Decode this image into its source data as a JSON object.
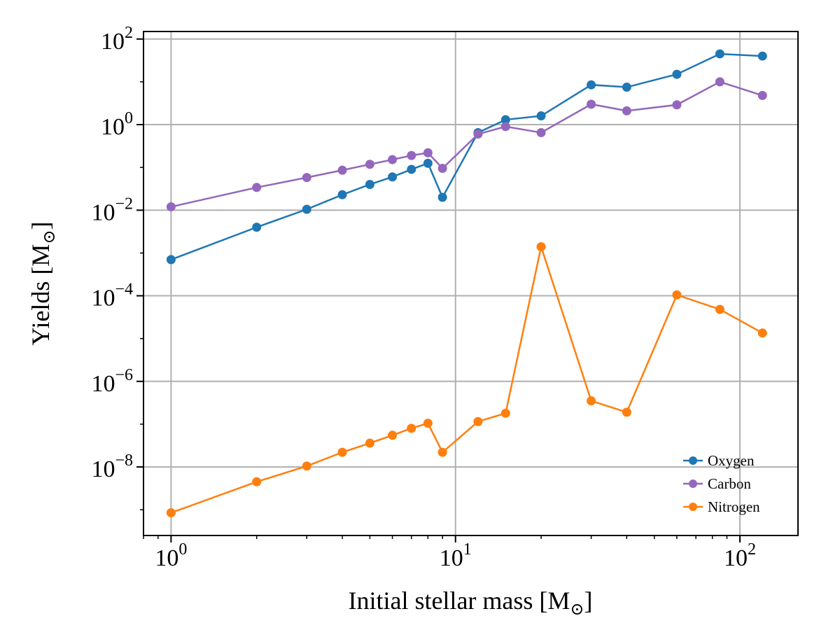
{
  "chart_data": {
    "type": "line",
    "xlabel": "Initial stellar mass [M",
    "ylabel": "Yields [M",
    "subscript_symbol": "⊙",
    "xscale": "log",
    "yscale": "log",
    "xlim": [
      0.8,
      160
    ],
    "ylim": [
      2.5e-10,
      150
    ],
    "grid": true,
    "legend_position": "lower-right",
    "x": [
      1,
      2,
      3,
      4,
      5,
      6,
      7,
      8,
      9,
      12,
      15,
      20,
      30,
      40,
      60,
      85,
      120
    ],
    "x_ticks": [
      {
        "value": 1,
        "base": "10",
        "exp": "0"
      },
      {
        "value": 10,
        "base": "10",
        "exp": "1"
      },
      {
        "value": 100,
        "base": "10",
        "exp": "2"
      }
    ],
    "y_ticks": [
      {
        "value": 1e-08,
        "base": "10",
        "exp": "−8"
      },
      {
        "value": 1e-06,
        "base": "10",
        "exp": "−6"
      },
      {
        "value": 0.0001,
        "base": "10",
        "exp": "−4"
      },
      {
        "value": 0.01,
        "base": "10",
        "exp": "−2"
      },
      {
        "value": 1,
        "base": "10",
        "exp": "0"
      },
      {
        "value": 100,
        "base": "10",
        "exp": "2"
      }
    ],
    "series": [
      {
        "name": "Oxygen",
        "color": "#1f77b4",
        "values": [
          0.0007,
          0.004,
          0.0105,
          0.023,
          0.04,
          0.06,
          0.09,
          0.125,
          0.02,
          0.65,
          1.3,
          1.6,
          8.5,
          7.5,
          15,
          45,
          40
        ]
      },
      {
        "name": "Carbon",
        "color": "#9467bd",
        "values": [
          0.012,
          0.034,
          0.058,
          0.086,
          0.118,
          0.152,
          0.19,
          0.22,
          0.095,
          0.6,
          0.9,
          0.65,
          3.0,
          2.1,
          2.9,
          10,
          4.8
        ]
      },
      {
        "name": "Nitrogen",
        "color": "#ff7f0e",
        "values": [
          8.5e-10,
          4.5e-09,
          1.05e-08,
          2.2e-08,
          3.6e-08,
          5.5e-08,
          8e-08,
          1.05e-07,
          2.2e-08,
          1.15e-07,
          1.8e-07,
          0.0014,
          3.5e-07,
          1.9e-07,
          0.000105,
          4.8e-05,
          1.35e-05
        ]
      }
    ]
  }
}
